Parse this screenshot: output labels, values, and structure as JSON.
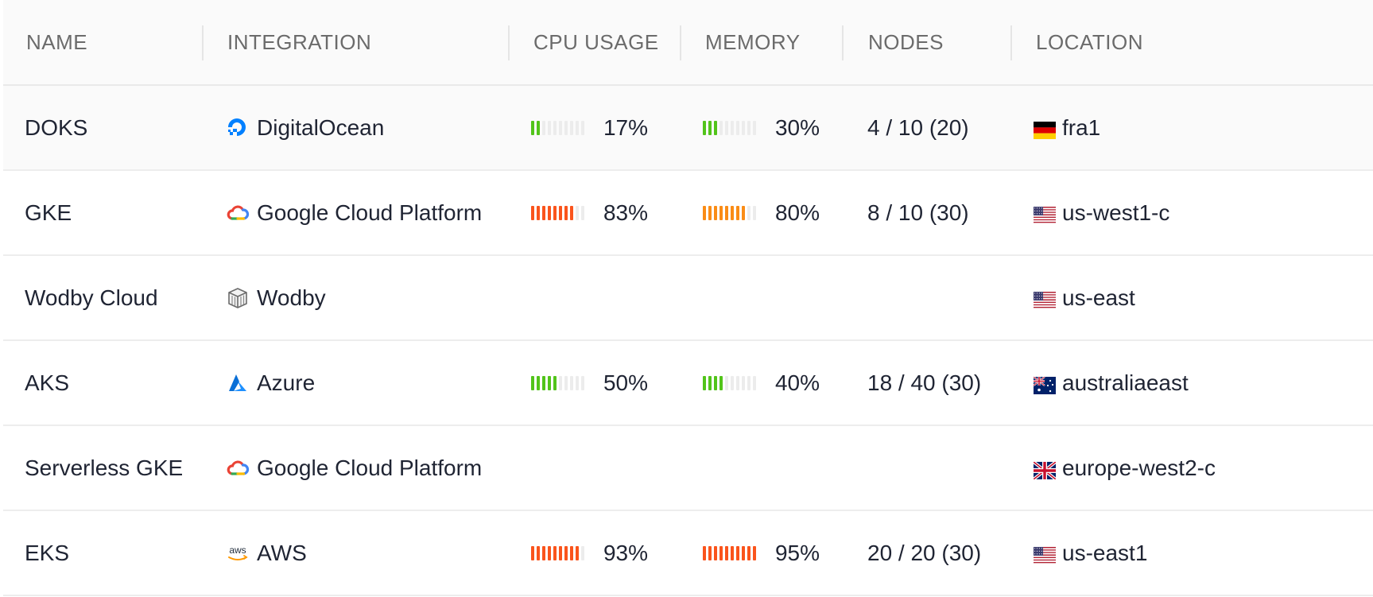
{
  "columns": {
    "name": "NAME",
    "integration": "INTEGRATION",
    "cpu": "CPU USAGE",
    "memory": "MEMORY",
    "nodes": "NODES",
    "location": "LOCATION"
  },
  "colors": {
    "green": "#52c41a",
    "orange": "#fa8c16",
    "red": "#fa541c",
    "empty": "#ececec"
  },
  "rows": [
    {
      "name": "DOKS",
      "integration": "DigitalOcean",
      "integration_icon": "digitalocean-icon",
      "cpu": "17%",
      "cpu_level": 0.17,
      "cpu_color": "#52c41a",
      "memory": "30%",
      "memory_level": 0.3,
      "memory_color": "#52c41a",
      "nodes": "4 / 10 (20)",
      "location": "fra1",
      "flag": "germany-flag-icon",
      "highlighted": true
    },
    {
      "name": "GKE",
      "integration": "Google Cloud Platform",
      "integration_icon": "google-cloud-icon",
      "cpu": "83%",
      "cpu_level": 0.83,
      "cpu_color": "#fa541c",
      "memory": "80%",
      "memory_level": 0.8,
      "memory_color": "#fa8c16",
      "nodes": "8 / 10 (30)",
      "location": "us-west1-c",
      "flag": "usa-flag-icon"
    },
    {
      "name": "Wodby Cloud",
      "integration": "Wodby",
      "integration_icon": "wodby-icon",
      "cpu": "",
      "memory": "",
      "nodes": "",
      "location": "us-east",
      "flag": "usa-flag-icon"
    },
    {
      "name": "AKS",
      "integration": "Azure",
      "integration_icon": "azure-icon",
      "cpu": "50%",
      "cpu_level": 0.5,
      "cpu_color": "#52c41a",
      "memory": "40%",
      "memory_level": 0.4,
      "memory_color": "#52c41a",
      "nodes": "18 / 40 (30)",
      "location": "australiaeast",
      "flag": "australia-flag-icon"
    },
    {
      "name": "Serverless GKE",
      "integration": "Google Cloud Platform",
      "integration_icon": "google-cloud-icon",
      "cpu": "",
      "memory": "",
      "nodes": "",
      "location": "europe-west2-c",
      "flag": "uk-flag-icon"
    },
    {
      "name": "EKS",
      "integration": "AWS",
      "integration_icon": "aws-icon",
      "cpu": "93%",
      "cpu_level": 0.93,
      "cpu_color": "#fa541c",
      "memory": "95%",
      "memory_level": 0.95,
      "memory_color": "#fa541c",
      "nodes": "20 / 20 (30)",
      "location": "us-east1",
      "flag": "usa-flag-icon"
    }
  ]
}
